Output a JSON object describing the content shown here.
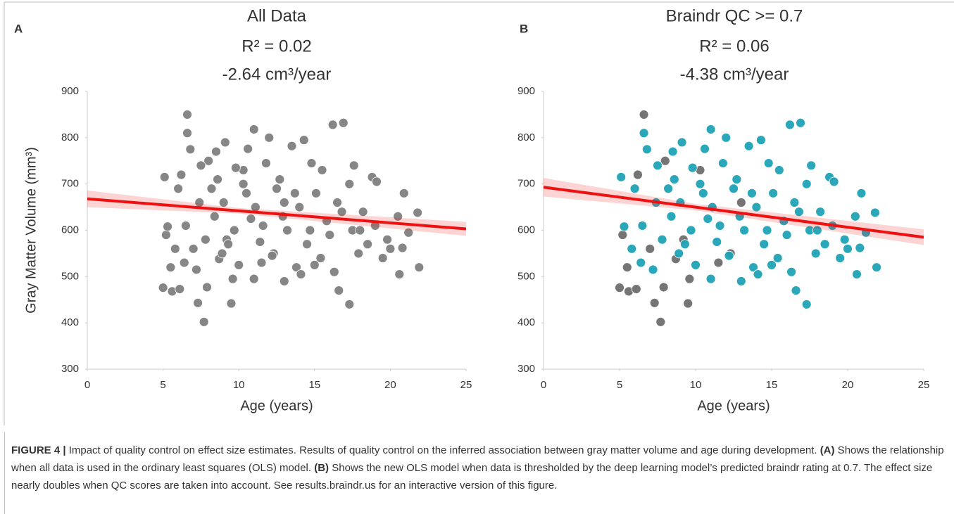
{
  "chart_data": [
    {
      "type": "scatter",
      "panel": "A",
      "title": "All Data",
      "subtitle": "R² = 0.02",
      "annotation": "-2.64 cm³/year",
      "xlabel": "Age (years)",
      "ylabel": "Gray Matter Volume (mm³)",
      "xlim": [
        0,
        25
      ],
      "xticks": [
        0,
        5,
        10,
        15,
        20,
        25
      ],
      "ylim": [
        300,
        900
      ],
      "yticks": [
        300,
        400,
        500,
        600,
        700,
        800,
        900
      ],
      "series": [
        {
          "color": "#7f7f7f",
          "x": [
            6.6,
            7.7,
            7.3,
            9.5,
            7.9,
            5.6,
            5.0,
            6.1,
            5.5,
            8.7,
            9.6,
            7.0,
            12.3,
            11.5,
            5.2,
            6.2,
            8.0,
            10.3,
            13.0,
            9.2,
            6.6,
            6.8,
            11.0,
            16.2,
            16.9,
            13.5,
            14.3,
            12.0,
            9.1,
            8.5,
            10.6,
            7.5,
            9.8,
            11.8,
            14.8,
            15.5,
            17.6,
            18.8,
            19.1,
            10.3,
            8.2,
            6.0,
            5.1,
            12.5,
            13.7,
            15.1,
            16.5,
            17.3,
            20.9,
            9.0,
            7.4,
            11.1,
            14.0,
            18.2,
            21.8,
            8.4,
            10.8,
            12.9,
            15.8,
            19.0,
            20.5,
            6.5,
            5.3,
            9.7,
            13.2,
            16.0,
            17.5,
            21.2,
            7.8,
            11.4,
            14.5,
            18.5,
            20.0,
            5.8,
            8.9,
            12.2,
            15.4,
            17.9,
            20.8,
            6.4,
            10.0,
            13.8,
            16.3,
            19.5,
            21.9,
            7.2,
            11.0,
            14.1,
            16.6,
            20.6,
            17.3,
            13.0,
            15.0,
            9.3,
            10.5,
            12.7,
            8.6,
            11.6,
            14.7,
            16.8,
            18.0,
            19.8
          ],
          "values": [
            850,
            402,
            443,
            442,
            477,
            468,
            476,
            473,
            520,
            538,
            495,
            560,
            550,
            530,
            590,
            720,
            750,
            730,
            660,
            580,
            810,
            775,
            818,
            828,
            832,
            782,
            795,
            800,
            790,
            770,
            776,
            740,
            735,
            745,
            745,
            730,
            740,
            715,
            705,
            700,
            690,
            690,
            715,
            690,
            680,
            680,
            660,
            700,
            680,
            660,
            660,
            650,
            650,
            640,
            638,
            630,
            625,
            630,
            620,
            610,
            630,
            610,
            608,
            600,
            600,
            590,
            600,
            595,
            580,
            575,
            570,
            570,
            560,
            560,
            550,
            545,
            540,
            550,
            562,
            530,
            525,
            520,
            510,
            540,
            520,
            515,
            495,
            505,
            470,
            505,
            440,
            490,
            525,
            570,
            680,
            710,
            710,
            610,
            600,
            640,
            600,
            580
          ]
        }
      ],
      "fit": {
        "color": "#ee1111",
        "x": [
          0,
          10,
          25
        ],
        "values": [
          668,
          642,
          603
        ],
        "lower": [
          650,
          636,
          588
        ],
        "upper": [
          686,
          648,
          618
        ]
      }
    },
    {
      "type": "scatter",
      "panel": "B",
      "title": "Braindr QC >= 0.7",
      "subtitle": "R² = 0.06",
      "annotation": "-4.38 cm³/year",
      "xlabel": "Age (years)",
      "xlim": [
        0,
        25
      ],
      "xticks": [
        0,
        5,
        10,
        15,
        20,
        25
      ],
      "ylim": [
        300,
        900
      ],
      "yticks": [
        300,
        400,
        500,
        600,
        700,
        800,
        900
      ],
      "series": [
        {
          "color": "#6e6e6e",
          "x": [
            6.6,
            7.7,
            7.3,
            9.5,
            7.9,
            5.6,
            5.0,
            6.1,
            5.5,
            8.7,
            9.6,
            7.0,
            12.3,
            11.5,
            5.2,
            6.2,
            8.0,
            10.3,
            13.0,
            9.2
          ],
          "values": [
            850,
            402,
            443,
            442,
            477,
            468,
            476,
            473,
            520,
            538,
            495,
            560,
            550,
            530,
            590,
            720,
            750,
            730,
            660,
            580
          ]
        },
        {
          "color": "#1fa3b6",
          "x": [
            6.6,
            6.8,
            11.0,
            16.2,
            16.9,
            13.5,
            14.3,
            12.0,
            9.1,
            8.5,
            10.6,
            7.5,
            9.8,
            11.8,
            14.8,
            15.5,
            17.6,
            18.8,
            19.1,
            10.3,
            8.2,
            6.0,
            5.1,
            12.5,
            13.7,
            15.1,
            16.5,
            17.3,
            20.9,
            9.0,
            7.4,
            11.1,
            14.0,
            18.2,
            21.8,
            8.4,
            10.8,
            12.9,
            15.8,
            19.0,
            20.5,
            6.5,
            5.3,
            9.7,
            13.2,
            16.0,
            17.5,
            21.2,
            7.8,
            11.4,
            14.5,
            18.5,
            20.0,
            5.8,
            8.9,
            12.2,
            15.4,
            17.9,
            20.8,
            6.4,
            10.0,
            13.8,
            16.3,
            19.5,
            21.9,
            7.2,
            11.0,
            14.1,
            16.6,
            20.6,
            17.3,
            13.0,
            15.0,
            9.3,
            10.5,
            12.7,
            8.6,
            11.6,
            14.7,
            16.8,
            18.0,
            19.8
          ],
          "values": [
            810,
            775,
            818,
            828,
            832,
            782,
            795,
            800,
            790,
            770,
            776,
            740,
            735,
            745,
            745,
            730,
            740,
            715,
            705,
            700,
            690,
            690,
            715,
            690,
            680,
            680,
            660,
            700,
            680,
            660,
            660,
            650,
            650,
            640,
            638,
            630,
            625,
            630,
            620,
            610,
            630,
            610,
            608,
            600,
            600,
            590,
            600,
            595,
            580,
            575,
            570,
            570,
            560,
            560,
            550,
            545,
            540,
            550,
            562,
            530,
            525,
            520,
            510,
            540,
            520,
            515,
            495,
            505,
            470,
            505,
            440,
            490,
            525,
            570,
            680,
            710,
            710,
            610,
            600,
            640,
            600,
            580
          ]
        }
      ],
      "fit": {
        "color": "#ee1111",
        "x": [
          0,
          10,
          25
        ],
        "values": [
          693,
          650,
          585
        ],
        "lower": [
          673,
          643,
          568
        ],
        "upper": [
          713,
          657,
          602
        ]
      }
    }
  ],
  "caption": [
    {
      "text": "FIGURE 4 |",
      "bold": true
    },
    {
      "text": " Impact of quality control on effect size estimates. Results of quality control on the inferred association between gray matter volume and age during development. ",
      "bold": false
    },
    {
      "text": "(A)",
      "bold": true
    },
    {
      "text": " Shows the relationship when all data is used in the ordinary least squares (OLS) model. ",
      "bold": false
    },
    {
      "text": "(B)",
      "bold": true
    },
    {
      "text": " Shows the new OLS model when data is thresholded by the deep learning model’s predicted braindr rating at 0.7. The effect size nearly doubles when QC scores are taken into account. See results.braindr.us for an interactive version of this figure.",
      "bold": false
    }
  ]
}
